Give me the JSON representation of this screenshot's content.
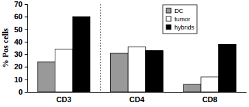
{
  "chart_data": {
    "type": "bar",
    "categories": [
      "CD3",
      "CD4",
      "CD8"
    ],
    "series": [
      {
        "name": "DC",
        "color": "#999999",
        "values": [
          24,
          31,
          6
        ]
      },
      {
        "name": "tumor",
        "color": "#ffffff",
        "values": [
          34,
          36,
          12
        ]
      },
      {
        "name": "hybrids",
        "color": "#000000",
        "values": [
          60,
          33,
          38
        ]
      }
    ],
    "y_label": "% Pos cells",
    "ylim": [
      0,
      70
    ],
    "yticks": [
      0,
      10,
      20,
      30,
      40,
      50,
      60,
      70
    ],
    "grid": false,
    "legend": "upper right"
  }
}
